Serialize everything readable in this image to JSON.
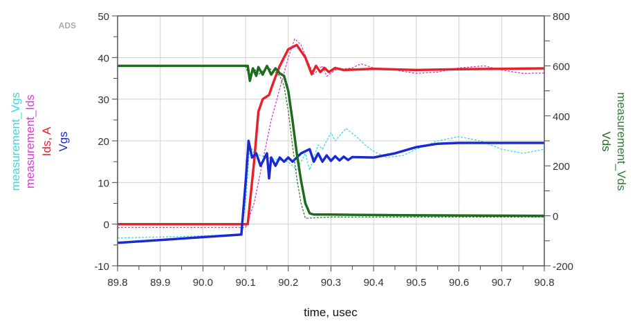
{
  "chart_data": {
    "type": "line",
    "watermark": "ADS",
    "xlabel": "time, usec",
    "xlim": [
      89.8,
      90.8
    ],
    "xticks": [
      "89.8",
      "89.9",
      "90.0",
      "90.1",
      "90.2",
      "90.3",
      "90.4",
      "90.5",
      "90.6",
      "90.7",
      "90.8"
    ],
    "ylim_left": [
      -10,
      50
    ],
    "yticks_left": [
      "-10",
      "0",
      "10",
      "20",
      "30",
      "40",
      "50"
    ],
    "ylim_right": [
      -200,
      800
    ],
    "yticks_right": [
      "-200",
      "0",
      "200",
      "400",
      "600",
      "800"
    ],
    "left_labels": [
      "measurement_Vgs",
      "measurement_Ids",
      "Ids, A",
      "Vgs"
    ],
    "right_labels": [
      "measurement_Vds",
      "Vds"
    ],
    "grid": true,
    "series": [
      {
        "name": "measurement_Vgs",
        "axis": "left",
        "color": "#3ad8e0",
        "style": "dotted",
        "points": [
          [
            89.8,
            -3.3
          ],
          [
            89.9,
            -3.1
          ],
          [
            90.0,
            -2.8
          ],
          [
            90.09,
            -2.5
          ],
          [
            90.1,
            5
          ],
          [
            90.11,
            19
          ],
          [
            90.12,
            17
          ],
          [
            90.15,
            16
          ],
          [
            90.2,
            15
          ],
          [
            90.22,
            13
          ],
          [
            90.24,
            17
          ],
          [
            90.25,
            13
          ],
          [
            90.26,
            16
          ],
          [
            90.27,
            19
          ],
          [
            90.28,
            18
          ],
          [
            90.3,
            22
          ],
          [
            90.31,
            20
          ],
          [
            90.335,
            23
          ],
          [
            90.36,
            21
          ],
          [
            90.38,
            19
          ],
          [
            90.4,
            17.5
          ],
          [
            90.43,
            16
          ],
          [
            90.47,
            16.5
          ],
          [
            90.5,
            18
          ],
          [
            90.55,
            20
          ],
          [
            90.6,
            21
          ],
          [
            90.65,
            20
          ],
          [
            90.7,
            18
          ],
          [
            90.75,
            17
          ],
          [
            90.8,
            18
          ]
        ]
      },
      {
        "name": "measurement_Ids",
        "axis": "left",
        "color": "#d63ad6",
        "style": "dotted",
        "points": [
          [
            89.8,
            -0.8
          ],
          [
            90.1,
            -0.8
          ],
          [
            90.12,
            5
          ],
          [
            90.16,
            25
          ],
          [
            90.2,
            40
          ],
          [
            90.215,
            44.5
          ],
          [
            90.23,
            43
          ],
          [
            90.25,
            38
          ],
          [
            90.26,
            36
          ],
          [
            90.28,
            38
          ],
          [
            90.29,
            35.5
          ],
          [
            90.31,
            37
          ],
          [
            90.35,
            37.5
          ],
          [
            90.37,
            38.5
          ],
          [
            90.4,
            37.5
          ],
          [
            90.45,
            37
          ],
          [
            90.5,
            36.2
          ],
          [
            90.55,
            36.5
          ],
          [
            90.6,
            37.5
          ],
          [
            90.66,
            38
          ],
          [
            90.7,
            37
          ],
          [
            90.75,
            36.2
          ],
          [
            90.8,
            36.3
          ]
        ]
      },
      {
        "name": "Ids",
        "axis": "left",
        "color": "#e8202a",
        "style": "solid",
        "points": [
          [
            89.8,
            0
          ],
          [
            90.105,
            0
          ],
          [
            90.12,
            15
          ],
          [
            90.13,
            27
          ],
          [
            90.14,
            30
          ],
          [
            90.155,
            31
          ],
          [
            90.165,
            34
          ],
          [
            90.18,
            38
          ],
          [
            90.2,
            42
          ],
          [
            90.22,
            43
          ],
          [
            90.24,
            40
          ],
          [
            90.255,
            36
          ],
          [
            90.265,
            38
          ],
          [
            90.275,
            36.5
          ],
          [
            90.285,
            37.5
          ],
          [
            90.295,
            36.5
          ],
          [
            90.31,
            37.5
          ],
          [
            90.33,
            37
          ],
          [
            90.4,
            37.3
          ],
          [
            90.5,
            37
          ],
          [
            90.6,
            37.2
          ],
          [
            90.8,
            37.4
          ]
        ]
      },
      {
        "name": "Vgs",
        "axis": "left",
        "color": "#1a2ad0",
        "style": "solid",
        "points": [
          [
            89.8,
            -4.5
          ],
          [
            90.09,
            -2.5
          ],
          [
            90.1,
            10
          ],
          [
            90.107,
            20
          ],
          [
            90.115,
            16
          ],
          [
            90.125,
            17
          ],
          [
            90.135,
            14
          ],
          [
            90.15,
            17
          ],
          [
            90.155,
            11
          ],
          [
            90.16,
            16
          ],
          [
            90.17,
            14
          ],
          [
            90.18,
            16
          ],
          [
            90.19,
            15
          ],
          [
            90.2,
            16
          ],
          [
            90.21,
            15
          ],
          [
            90.22,
            16
          ],
          [
            90.23,
            17
          ],
          [
            90.25,
            18
          ],
          [
            90.26,
            15
          ],
          [
            90.27,
            17
          ],
          [
            90.28,
            15
          ],
          [
            90.29,
            16.5
          ],
          [
            90.3,
            15.2
          ],
          [
            90.31,
            16.3
          ],
          [
            90.32,
            15.3
          ],
          [
            90.33,
            16.2
          ],
          [
            90.34,
            15.4
          ],
          [
            90.35,
            16.1
          ],
          [
            90.4,
            16
          ],
          [
            90.45,
            17
          ],
          [
            90.5,
            18.5
          ],
          [
            90.55,
            19.3
          ],
          [
            90.6,
            19.5
          ],
          [
            90.8,
            19.5
          ]
        ]
      },
      {
        "name": "measurement_Vds",
        "axis": "right",
        "color": "#2e7d2e",
        "style": "dotted",
        "points": [
          [
            89.8,
            600
          ],
          [
            90.1,
            600
          ],
          [
            90.11,
            545
          ],
          [
            90.12,
            590
          ],
          [
            90.13,
            565
          ],
          [
            90.15,
            595
          ],
          [
            90.17,
            575
          ],
          [
            90.18,
            560
          ],
          [
            90.19,
            520
          ],
          [
            90.2,
            420
          ],
          [
            90.21,
            280
          ],
          [
            90.22,
            150
          ],
          [
            90.23,
            50
          ],
          [
            90.24,
            -10
          ],
          [
            90.3,
            -5
          ],
          [
            90.5,
            -5
          ],
          [
            90.8,
            -5
          ]
        ]
      },
      {
        "name": "Vds",
        "axis": "right",
        "color": "#1e6b1e",
        "style": "solid",
        "points": [
          [
            89.8,
            600
          ],
          [
            90.1,
            600
          ],
          [
            90.105,
            600
          ],
          [
            90.11,
            540
          ],
          [
            90.117,
            590
          ],
          [
            90.125,
            560
          ],
          [
            90.13,
            595
          ],
          [
            90.14,
            565
          ],
          [
            90.15,
            600
          ],
          [
            90.16,
            565
          ],
          [
            90.17,
            590
          ],
          [
            90.18,
            570
          ],
          [
            90.19,
            560
          ],
          [
            90.2,
            500
          ],
          [
            90.21,
            380
          ],
          [
            90.22,
            250
          ],
          [
            90.23,
            140
          ],
          [
            90.24,
            50
          ],
          [
            90.25,
            10
          ],
          [
            90.26,
            5
          ],
          [
            90.3,
            5
          ],
          [
            90.5,
            2
          ],
          [
            90.8,
            0
          ]
        ]
      }
    ]
  }
}
